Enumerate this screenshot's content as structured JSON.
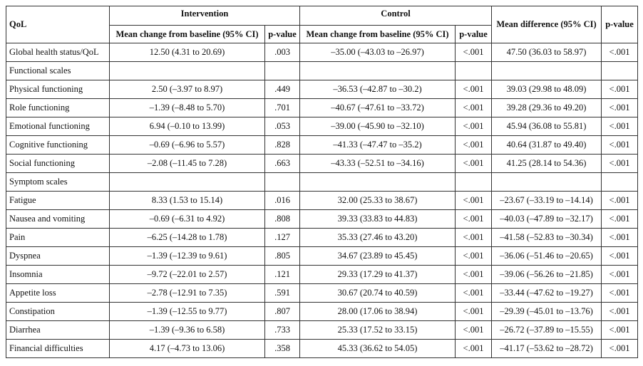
{
  "header": {
    "row1": [
      "QoL",
      "Intervention",
      "Control",
      "Mean difference (95% CI)",
      "p-value"
    ],
    "row2": [
      "Mean change from baseline (95% CI)",
      "p-value",
      "Mean change from baseline (95% CI)",
      "p-value"
    ]
  },
  "rows": [
    [
      "Global health status/QoL",
      "12.50 (4.31 to 20.69)",
      ".003",
      "–35.00 (–43.03 to –26.97)",
      "<.001",
      "47.50 (36.03 to 58.97)",
      "<.001"
    ],
    [
      "Functional scales"
    ],
    [
      "Physical functioning",
      "2.50 (–3.97 to 8.97)",
      ".449",
      "–36.53 (–42.87 to –30.2)",
      "<.001",
      "39.03 (29.98 to 48.09)",
      "<.001"
    ],
    [
      "Role functioning",
      "–1.39 (–8.48 to 5.70)",
      ".701",
      "–40.67 (–47.61 to –33.72)",
      "<.001",
      "39.28 (29.36 to 49.20)",
      "<.001"
    ],
    [
      "Emotional functioning",
      "6.94 (–0.10 to 13.99)",
      ".053",
      "–39.00 (–45.90 to –32.10)",
      "<.001",
      "45.94 (36.08 to 55.81)",
      "<.001"
    ],
    [
      "Cognitive functioning",
      "–0.69 (–6.96 to 5.57)",
      ".828",
      "–41.33 (–47.47 to –35.2)",
      "<.001",
      "40.64 (31.87 to 49.40)",
      "<.001"
    ],
    [
      "Social functioning",
      "–2.08 (–11.45 to 7.28)",
      ".663",
      "–43.33 (–52.51 to –34.16)",
      "<.001",
      "41.25 (28.14 to 54.36)",
      "<.001"
    ],
    [
      "Symptom scales"
    ],
    [
      "Fatigue",
      "8.33 (1.53 to 15.14)",
      ".016",
      "32.00 (25.33 to 38.67)",
      "<.001",
      "–23.67 (–33.19 to –14.14)",
      "<.001"
    ],
    [
      "Nausea and vomiting",
      "–0.69 (–6.31 to 4.92)",
      ".808",
      "39.33 (33.83 to 44.83)",
      "<.001",
      "–40.03 (–47.89 to –32.17)",
      "<.001"
    ],
    [
      "Pain",
      "–6.25 (–14.28 to 1.78)",
      ".127",
      "35.33 (27.46 to 43.20)",
      "<.001",
      "–41.58 (–52.83 to –30.34)",
      "<.001"
    ],
    [
      "Dyspnea",
      "–1.39 (–12.39 to 9.61)",
      ".805",
      "34.67 (23.89 to 45.45)",
      "<.001",
      "–36.06 (–51.46 to –20.65)",
      "<.001"
    ],
    [
      "Insomnia",
      "–9.72 (–22.01 to 2.57)",
      ".121",
      "29.33 (17.29 to 41.37)",
      "<.001",
      "–39.06 (–56.26 to –21.85)",
      "<.001"
    ],
    [
      "Appetite loss",
      "–2.78 (–12.91 to 7.35)",
      ".591",
      "30.67 (20.74 to 40.59)",
      "<.001",
      "–33.44 (–47.62 to –19.27)",
      "<.001"
    ],
    [
      "Constipation",
      "–1.39 (–12.55 to 9.77)",
      ".807",
      "28.00 (17.06 to 38.94)",
      "<.001",
      "–29.39 (–45.01 to –13.76)",
      "<.001"
    ],
    [
      "Diarrhea",
      "–1.39 (–9.36 to 6.58)",
      ".733",
      "25.33 (17.52 to 33.15)",
      "<.001",
      "–26.72 (–37.89 to –15.55)",
      "<.001"
    ],
    [
      "Financial difficulties",
      "4.17 (–4.73 to 13.06)",
      ".358",
      "45.33 (36.62 to 54.05)",
      "<.001",
      "–41.17 (–53.62 to –28.72)",
      "<.001"
    ]
  ]
}
